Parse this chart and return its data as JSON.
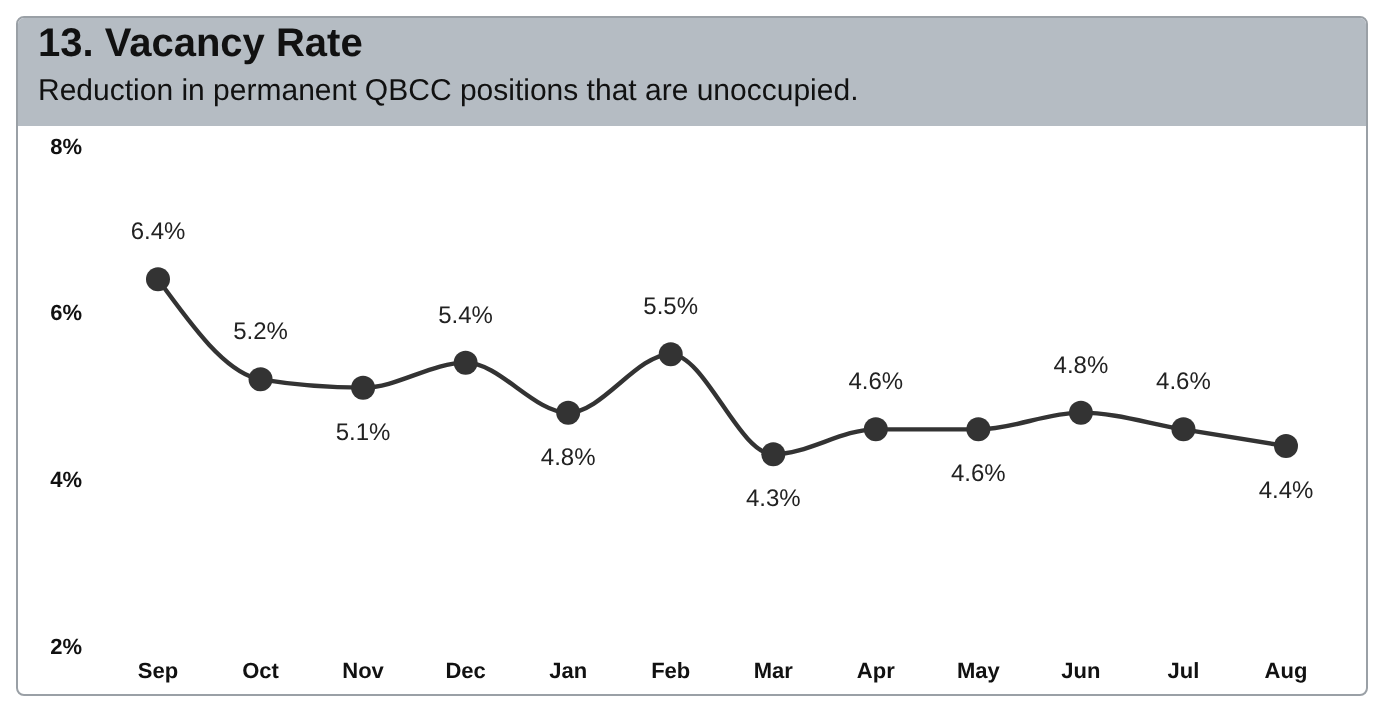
{
  "chart_data": {
    "type": "line",
    "title": "13. Vacancy Rate",
    "subtitle": "Reduction in permanent QBCC positions that are unoccupied.",
    "categories": [
      "Sep",
      "Oct",
      "Nov",
      "Dec",
      "Jan",
      "Feb",
      "Mar",
      "Apr",
      "May",
      "Jun",
      "Jul",
      "Aug"
    ],
    "series": [
      {
        "color": "#333333",
        "values": [
          6.4,
          5.2,
          5.1,
          5.4,
          4.8,
          5.5,
          4.3,
          4.6,
          4.6,
          4.8,
          4.6,
          4.4
        ],
        "value_labels": [
          "6.4%",
          "5.2%",
          "5.1%",
          "5.4%",
          "4.8%",
          "5.5%",
          "4.3%",
          "4.6%",
          "4.6%",
          "4.8%",
          "4.6%",
          "4.4%"
        ]
      }
    ],
    "ylim": [
      2,
      8
    ],
    "yticks": [
      {
        "value": 2,
        "label": "2%"
      },
      {
        "value": 4,
        "label": "4%"
      },
      {
        "value": 6,
        "label": "6%"
      },
      {
        "value": 8,
        "label": "8%"
      }
    ],
    "grid": false,
    "legend": false,
    "marker": "circle",
    "line_style": "solid"
  }
}
